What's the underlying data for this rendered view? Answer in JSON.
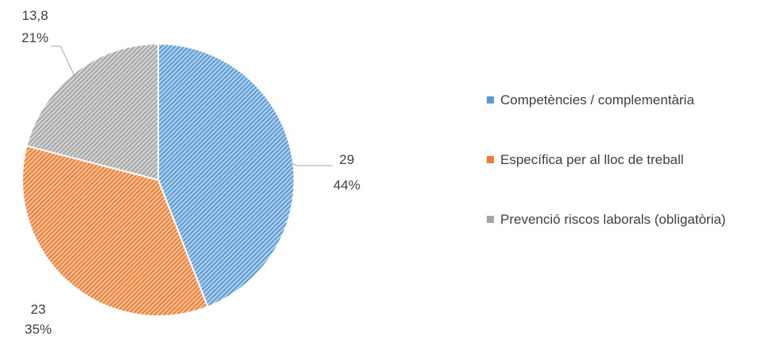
{
  "chart_data": {
    "type": "pie",
    "title": "",
    "slices": [
      {
        "label": "Competències / complementària",
        "value": 29,
        "value_label": "29",
        "percent_label": "44%",
        "color": "#5B9BD5",
        "pattern": "diagonal-hatch"
      },
      {
        "label": "Específica per al lloc de treball",
        "value": 23,
        "value_label": "23",
        "percent_label": "35%",
        "color": "#ED7D31",
        "pattern": "diagonal-hatch"
      },
      {
        "label": "Prevenció riscos laborals (obligatòria)",
        "value": 13.8,
        "value_label": "13,8",
        "percent_label": "21%",
        "color": "#A5A5A5",
        "pattern": "diagonal-hatch"
      }
    ],
    "legend": {
      "position": "right"
    },
    "start_angle": "top",
    "direction": "clockwise"
  }
}
